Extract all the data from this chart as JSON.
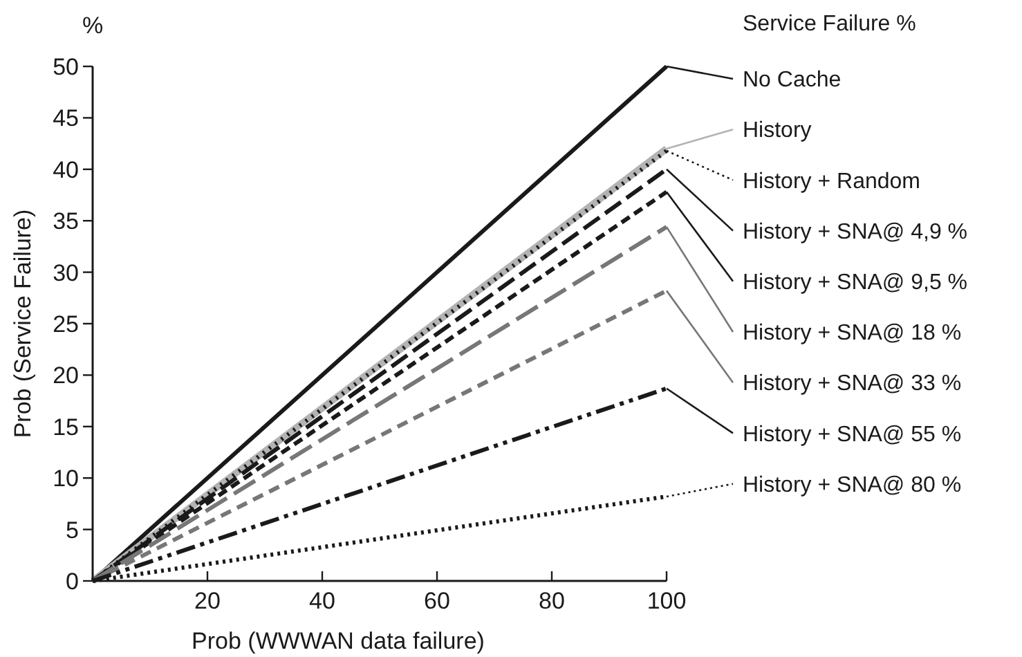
{
  "chart_data": {
    "type": "line",
    "xlabel": "Prob (WWWAN data failure)",
    "ylabel": "Prob (Service Failure)",
    "annotations": [
      "%"
    ],
    "legend_title": "Service Failure %",
    "legend": "right",
    "x": [
      0,
      100
    ],
    "xlim": [
      0,
      100
    ],
    "xticks": [
      20,
      40,
      60,
      80,
      100
    ],
    "ylim": [
      0,
      50
    ],
    "yticks": [
      0,
      5,
      10,
      15,
      20,
      25,
      30,
      35,
      40,
      45,
      50
    ],
    "grid": false,
    "marker": "none",
    "series": [
      {
        "name": "No Cache",
        "color": "#1a1a1a",
        "values": [
          0,
          50
        ],
        "line_style": "solid"
      },
      {
        "name": "History",
        "color": "#b3b3b3",
        "values": [
          0,
          42
        ],
        "line_style": "solid"
      },
      {
        "name": "History + Random",
        "color": "#1a1a1a",
        "values": [
          0,
          41.8
        ],
        "line_style": "dotted"
      },
      {
        "name": "History + SNA@ 4,9 %",
        "color": "#1a1a1a",
        "values": [
          0,
          40
        ],
        "line_style": "dashed"
      },
      {
        "name": "History + SNA@ 9,5 %",
        "color": "#1a1a1a",
        "values": [
          0,
          37.8
        ],
        "line_style": "dashed"
      },
      {
        "name": "History + SNA@ 18 %",
        "color": "#777777",
        "values": [
          0,
          34.4
        ],
        "line_style": "dashed"
      },
      {
        "name": "History + SNA@ 33 %",
        "color": "#777777",
        "values": [
          0,
          28.2
        ],
        "line_style": "dashed"
      },
      {
        "name": "History + SNA@ 55 %",
        "color": "#1a1a1a",
        "values": [
          0,
          18.7
        ],
        "line_style": "dashed"
      },
      {
        "name": "History + SNA@ 80 %",
        "color": "#1a1a1a",
        "values": [
          0,
          8.2
        ],
        "line_style": "dotted"
      }
    ]
  }
}
